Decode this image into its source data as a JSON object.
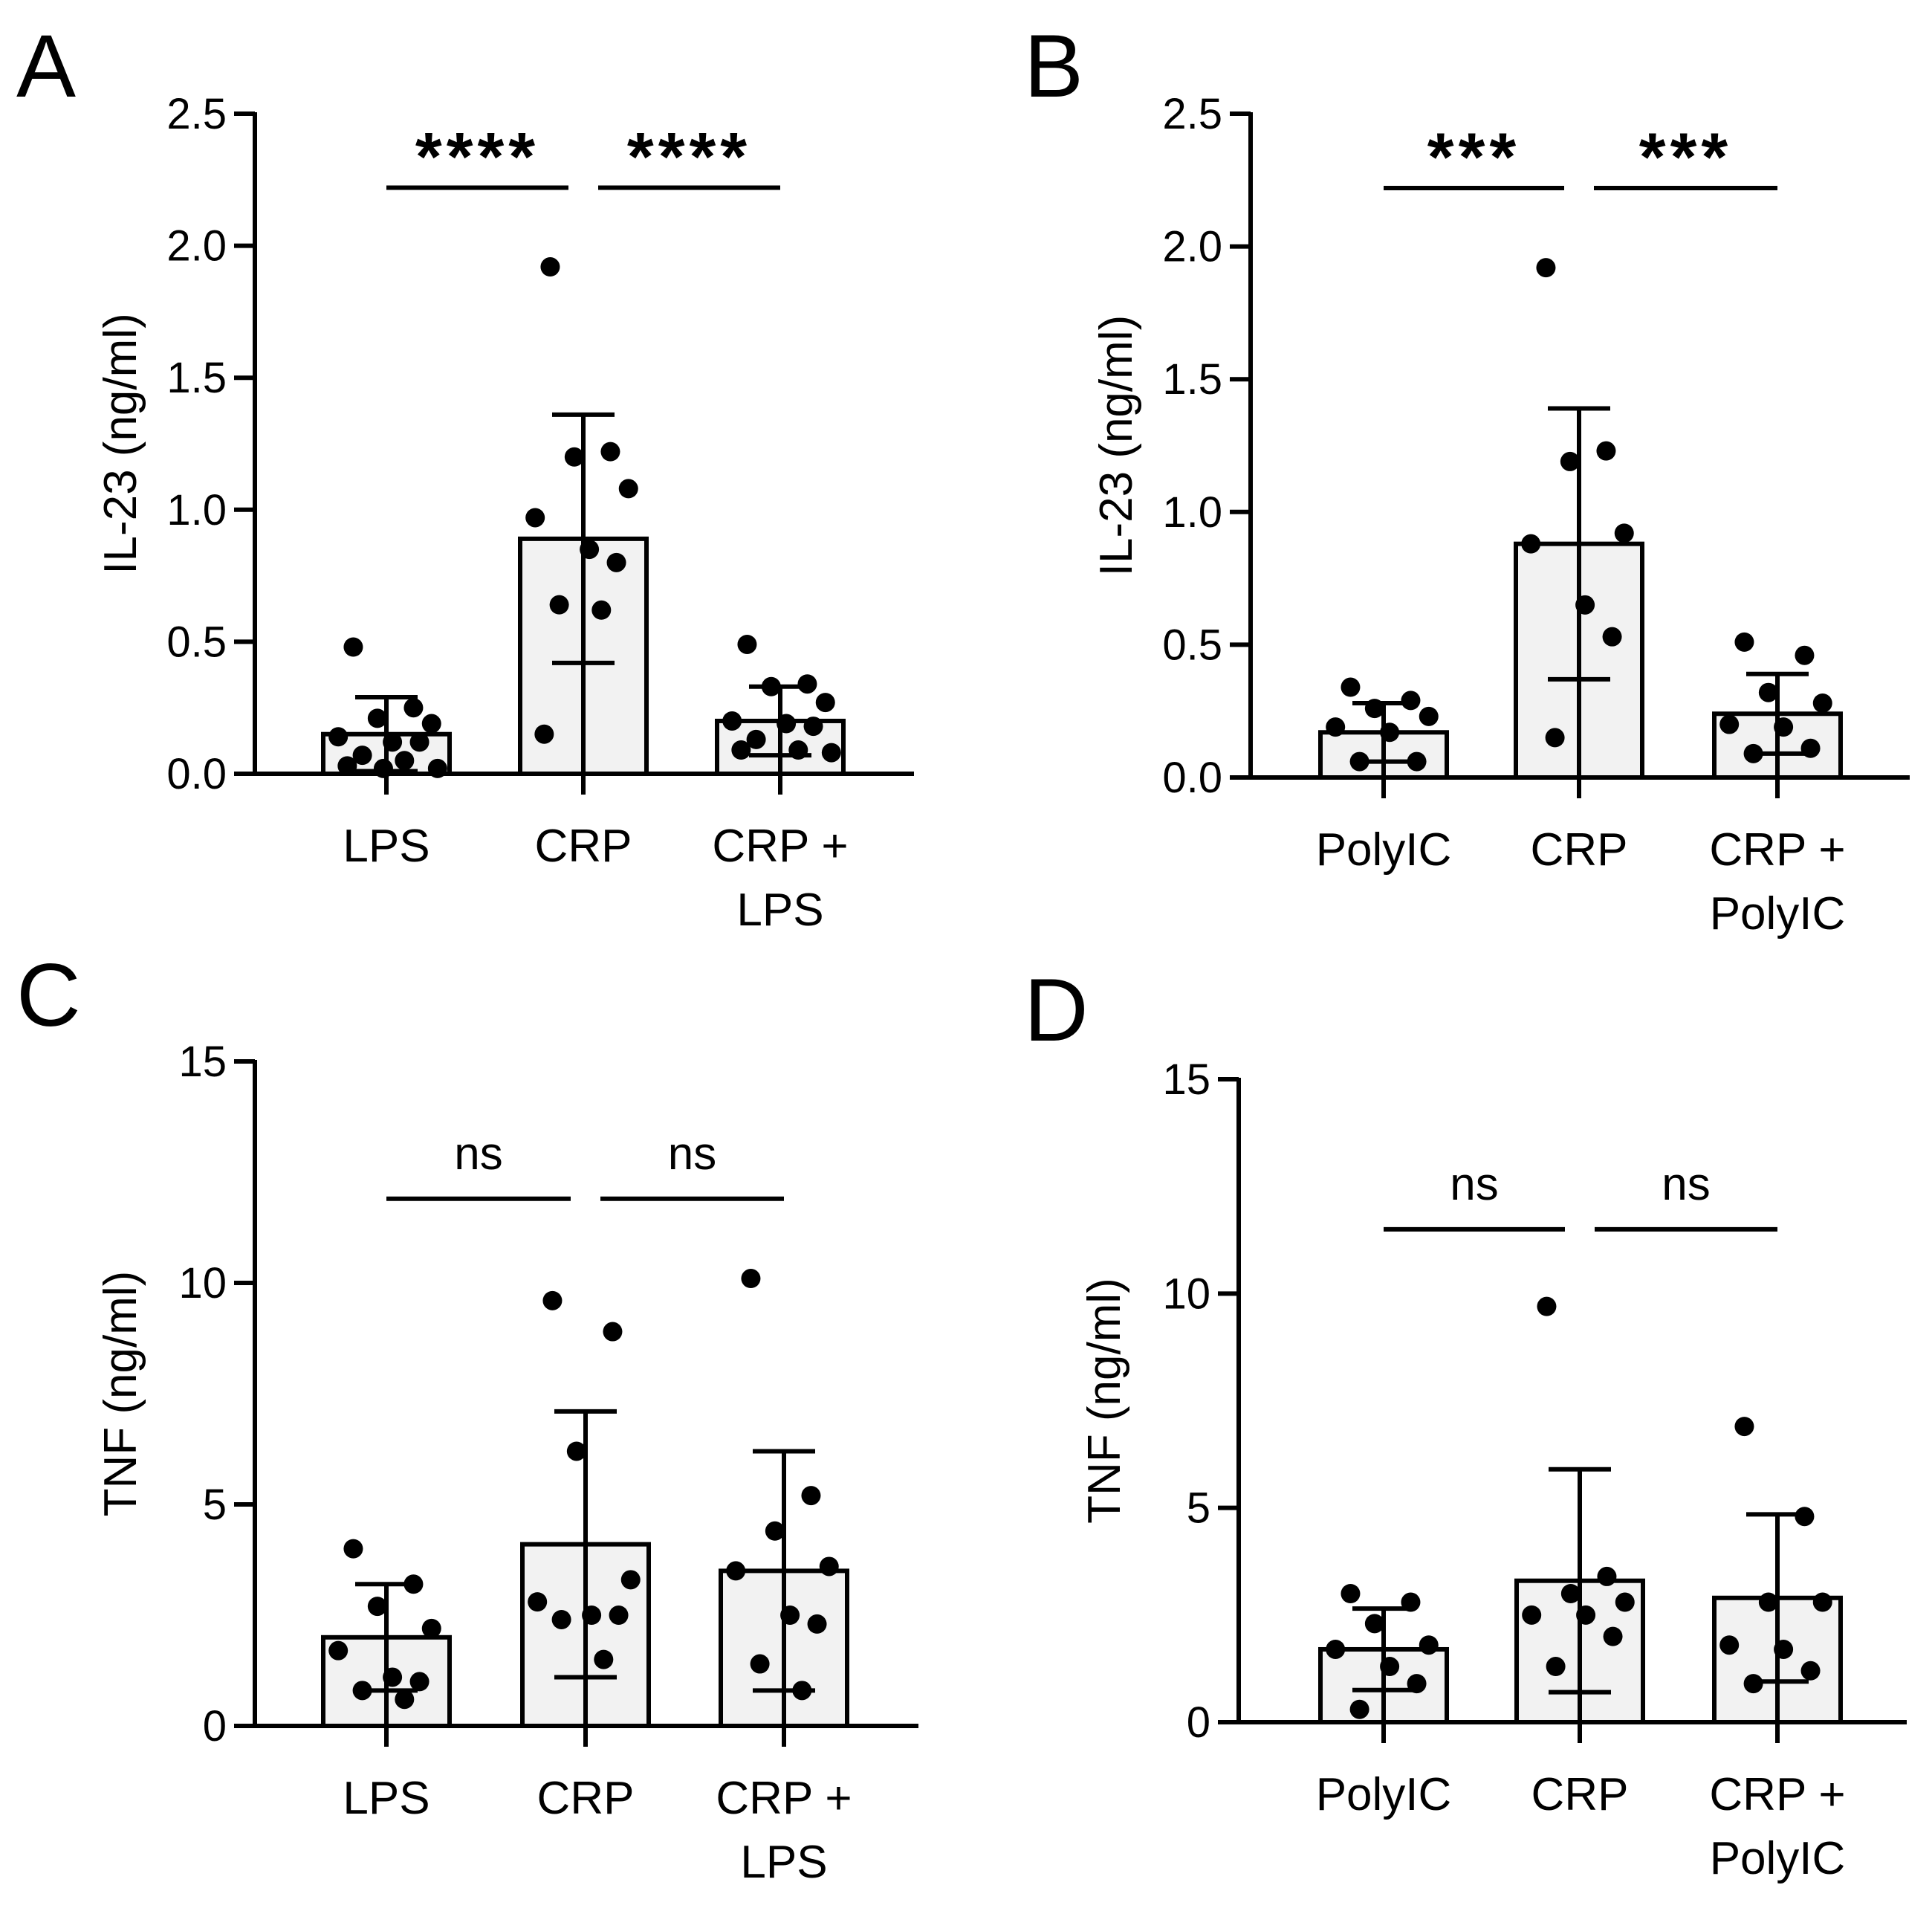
{
  "chart_data": [
    {
      "panel_label": "A",
      "type": "bar",
      "ylabel": "IL-23 (ng/ml)",
      "ylim": [
        0,
        2.5
      ],
      "yticks": [
        "0.0",
        "0.5",
        "1.0",
        "1.5",
        "2.0",
        "2.5"
      ],
      "ytick_values": [
        0,
        0.5,
        1.0,
        1.5,
        2.0,
        2.5
      ],
      "categories": [
        [
          "LPS"
        ],
        [
          "CRP"
        ],
        [
          "CRP +",
          "LPS"
        ]
      ],
      "means": [
        0.15,
        0.89,
        0.2
      ],
      "sd": [
        0.14,
        0.47,
        0.13
      ],
      "points": [
        [
          0.48,
          0.25,
          0.21,
          0.19,
          0.14,
          0.12,
          0.12,
          0.07,
          0.05,
          0.03,
          0.02,
          0.02
        ],
        [
          1.92,
          1.22,
          1.2,
          1.08,
          0.97,
          0.85,
          0.8,
          0.64,
          0.62,
          0.15
        ],
        [
          0.49,
          0.34,
          0.33,
          0.27,
          0.2,
          0.19,
          0.18,
          0.13,
          0.09,
          0.09,
          0.08
        ]
      ],
      "comparisons": [
        {
          "from": 0,
          "to": 1,
          "label": "****"
        },
        {
          "from": 1,
          "to": 2,
          "label": "****"
        }
      ],
      "comparison_y": 2.22
    },
    {
      "panel_label": "B",
      "type": "bar",
      "ylabel": "IL-23 (ng/ml)",
      "ylim": [
        0,
        2.5
      ],
      "yticks": [
        "0.0",
        "0.5",
        "1.0",
        "1.5",
        "2.0",
        "2.5"
      ],
      "ytick_values": [
        0,
        0.5,
        1.0,
        1.5,
        2.0,
        2.5
      ],
      "categories": [
        [
          "PolyIC"
        ],
        [
          "CRP"
        ],
        [
          "CRP +",
          "PolyIC"
        ]
      ],
      "means": [
        0.17,
        0.88,
        0.24
      ],
      "sd": [
        0.11,
        0.51,
        0.15
      ],
      "points": [
        [
          0.34,
          0.29,
          0.26,
          0.23,
          0.19,
          0.17,
          0.06,
          0.06
        ],
        [
          1.92,
          1.23,
          1.19,
          0.92,
          0.88,
          0.65,
          0.53,
          0.15
        ],
        [
          0.51,
          0.46,
          0.32,
          0.28,
          0.2,
          0.19,
          0.11,
          0.09
        ]
      ],
      "comparisons": [
        {
          "from": 0,
          "to": 1,
          "label": "***"
        },
        {
          "from": 1,
          "to": 2,
          "label": "***"
        }
      ],
      "comparison_y": 2.22
    },
    {
      "panel_label": "C",
      "type": "bar",
      "ylabel": "TNF (ng/ml)",
      "ylim": [
        0,
        15
      ],
      "yticks": [
        "0",
        "5",
        "10",
        "15"
      ],
      "ytick_values": [
        0,
        5,
        10,
        15
      ],
      "categories": [
        [
          "LPS"
        ],
        [
          "CRP"
        ],
        [
          "CRP +",
          "LPS"
        ]
      ],
      "means": [
        2.0,
        4.1,
        3.5
      ],
      "sd": [
        1.2,
        3.0,
        2.7
      ],
      "points": [
        [
          4.0,
          3.2,
          2.7,
          2.2,
          1.7,
          1.1,
          1.0,
          0.8,
          0.6
        ],
        [
          9.6,
          8.9,
          6.2,
          3.3,
          2.8,
          2.5,
          2.5,
          2.4,
          1.5
        ],
        [
          10.1,
          5.2,
          4.4,
          3.6,
          3.5,
          2.5,
          2.3,
          1.4,
          0.8
        ]
      ],
      "comparisons": [
        {
          "from": 0,
          "to": 1,
          "label": "ns"
        },
        {
          "from": 1,
          "to": 2,
          "label": "ns"
        }
      ],
      "comparison_y": 11.9
    },
    {
      "panel_label": "D",
      "type": "bar",
      "ylabel": "TNF (ng/ml)",
      "ylim": [
        0,
        15
      ],
      "yticks": [
        "0",
        "5",
        "10",
        "15"
      ],
      "ytick_values": [
        0,
        5,
        10,
        15
      ],
      "categories": [
        [
          "PolyIC"
        ],
        [
          "CRP"
        ],
        [
          "CRP +",
          "PolyIC"
        ]
      ],
      "means": [
        1.7,
        3.3,
        2.9
      ],
      "sd": [
        0.95,
        2.6,
        1.95
      ],
      "points": [
        [
          3.0,
          2.8,
          2.3,
          1.8,
          1.7,
          1.3,
          0.9,
          0.3
        ],
        [
          9.7,
          3.4,
          3.0,
          2.8,
          2.5,
          2.5,
          2.0,
          1.3
        ],
        [
          6.9,
          4.8,
          2.8,
          2.8,
          1.8,
          1.7,
          1.2,
          0.9
        ]
      ],
      "comparisons": [
        {
          "from": 0,
          "to": 1,
          "label": "ns"
        },
        {
          "from": 1,
          "to": 2,
          "label": "ns"
        }
      ],
      "comparison_y": 11.5
    }
  ]
}
